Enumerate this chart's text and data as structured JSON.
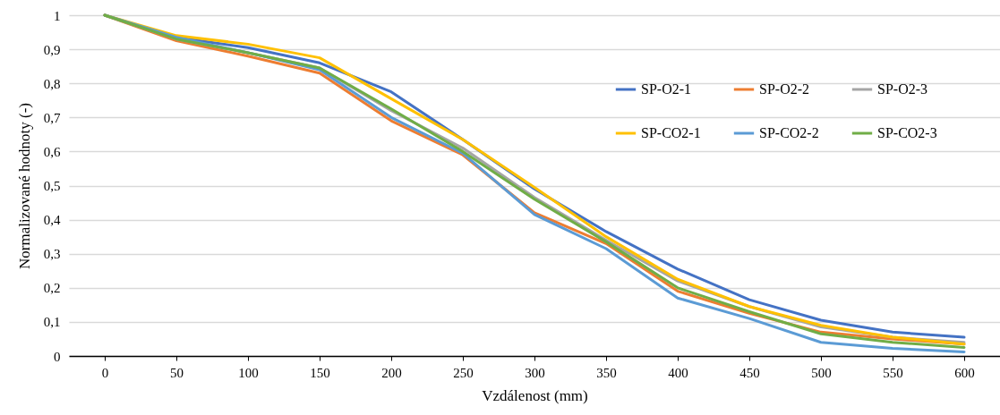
{
  "chart_data": {
    "type": "line",
    "xlabel": "Vzdálenost (mm)",
    "ylabel": "Normalizované hodnoty (-)",
    "categories": [
      "0",
      "50",
      "100",
      "150",
      "200",
      "250",
      "300",
      "350",
      "400",
      "450",
      "500",
      "550",
      "600"
    ],
    "ylim": [
      0,
      1
    ],
    "yticks": [
      0,
      {
        "value": 0.1,
        "label": "0,1"
      },
      {
        "value": 0.2,
        "label": "0,2"
      },
      {
        "value": 0.3,
        "label": "0,3"
      },
      {
        "value": 0.4,
        "label": "0,4"
      },
      {
        "value": 0.5,
        "label": "0,5"
      },
      {
        "value": 0.6,
        "label": "0,6"
      },
      {
        "value": 0.7,
        "label": "0,7"
      },
      {
        "value": 0.8,
        "label": "0,8"
      },
      {
        "value": 0.9,
        "label": "0,9"
      },
      1
    ],
    "grid": "y",
    "legend": "top right",
    "marker": "none",
    "line_style": "solid",
    "series": [
      {
        "name": "SP-O2-1",
        "color": "#4472c4",
        "values": [
          1,
          0.935,
          0.905,
          0.86,
          0.775,
          0.635,
          0.49,
          0.365,
          0.255,
          0.165,
          0.105,
          0.07,
          0.055
        ]
      },
      {
        "name": "SP-O2-2",
        "color": "#ed7d31",
        "values": [
          1,
          0.925,
          0.88,
          0.83,
          0.69,
          0.59,
          0.42,
          0.33,
          0.19,
          0.125,
          0.07,
          0.05,
          0.035
        ]
      },
      {
        "name": "SP-O2-3",
        "color": "#a5a5a5",
        "values": [
          1,
          0.93,
          0.89,
          0.845,
          0.72,
          0.61,
          0.465,
          0.34,
          0.22,
          0.145,
          0.085,
          0.055,
          0.04
        ]
      },
      {
        "name": "SP-CO2-1",
        "color": "#ffc000",
        "values": [
          1,
          0.94,
          0.915,
          0.875,
          0.755,
          0.635,
          0.495,
          0.35,
          0.225,
          0.145,
          0.09,
          0.055,
          0.035
        ]
      },
      {
        "name": "SP-CO2-2",
        "color": "#5b9bd5",
        "values": [
          1,
          0.935,
          0.89,
          0.84,
          0.7,
          0.595,
          0.415,
          0.315,
          0.17,
          0.11,
          0.04,
          0.022,
          0.012
        ]
      },
      {
        "name": "SP-CO2-3",
        "color": "#70ad47",
        "values": [
          1,
          0.93,
          0.89,
          0.845,
          0.725,
          0.6,
          0.46,
          0.335,
          0.2,
          0.13,
          0.065,
          0.04,
          0.025
        ]
      }
    ]
  }
}
